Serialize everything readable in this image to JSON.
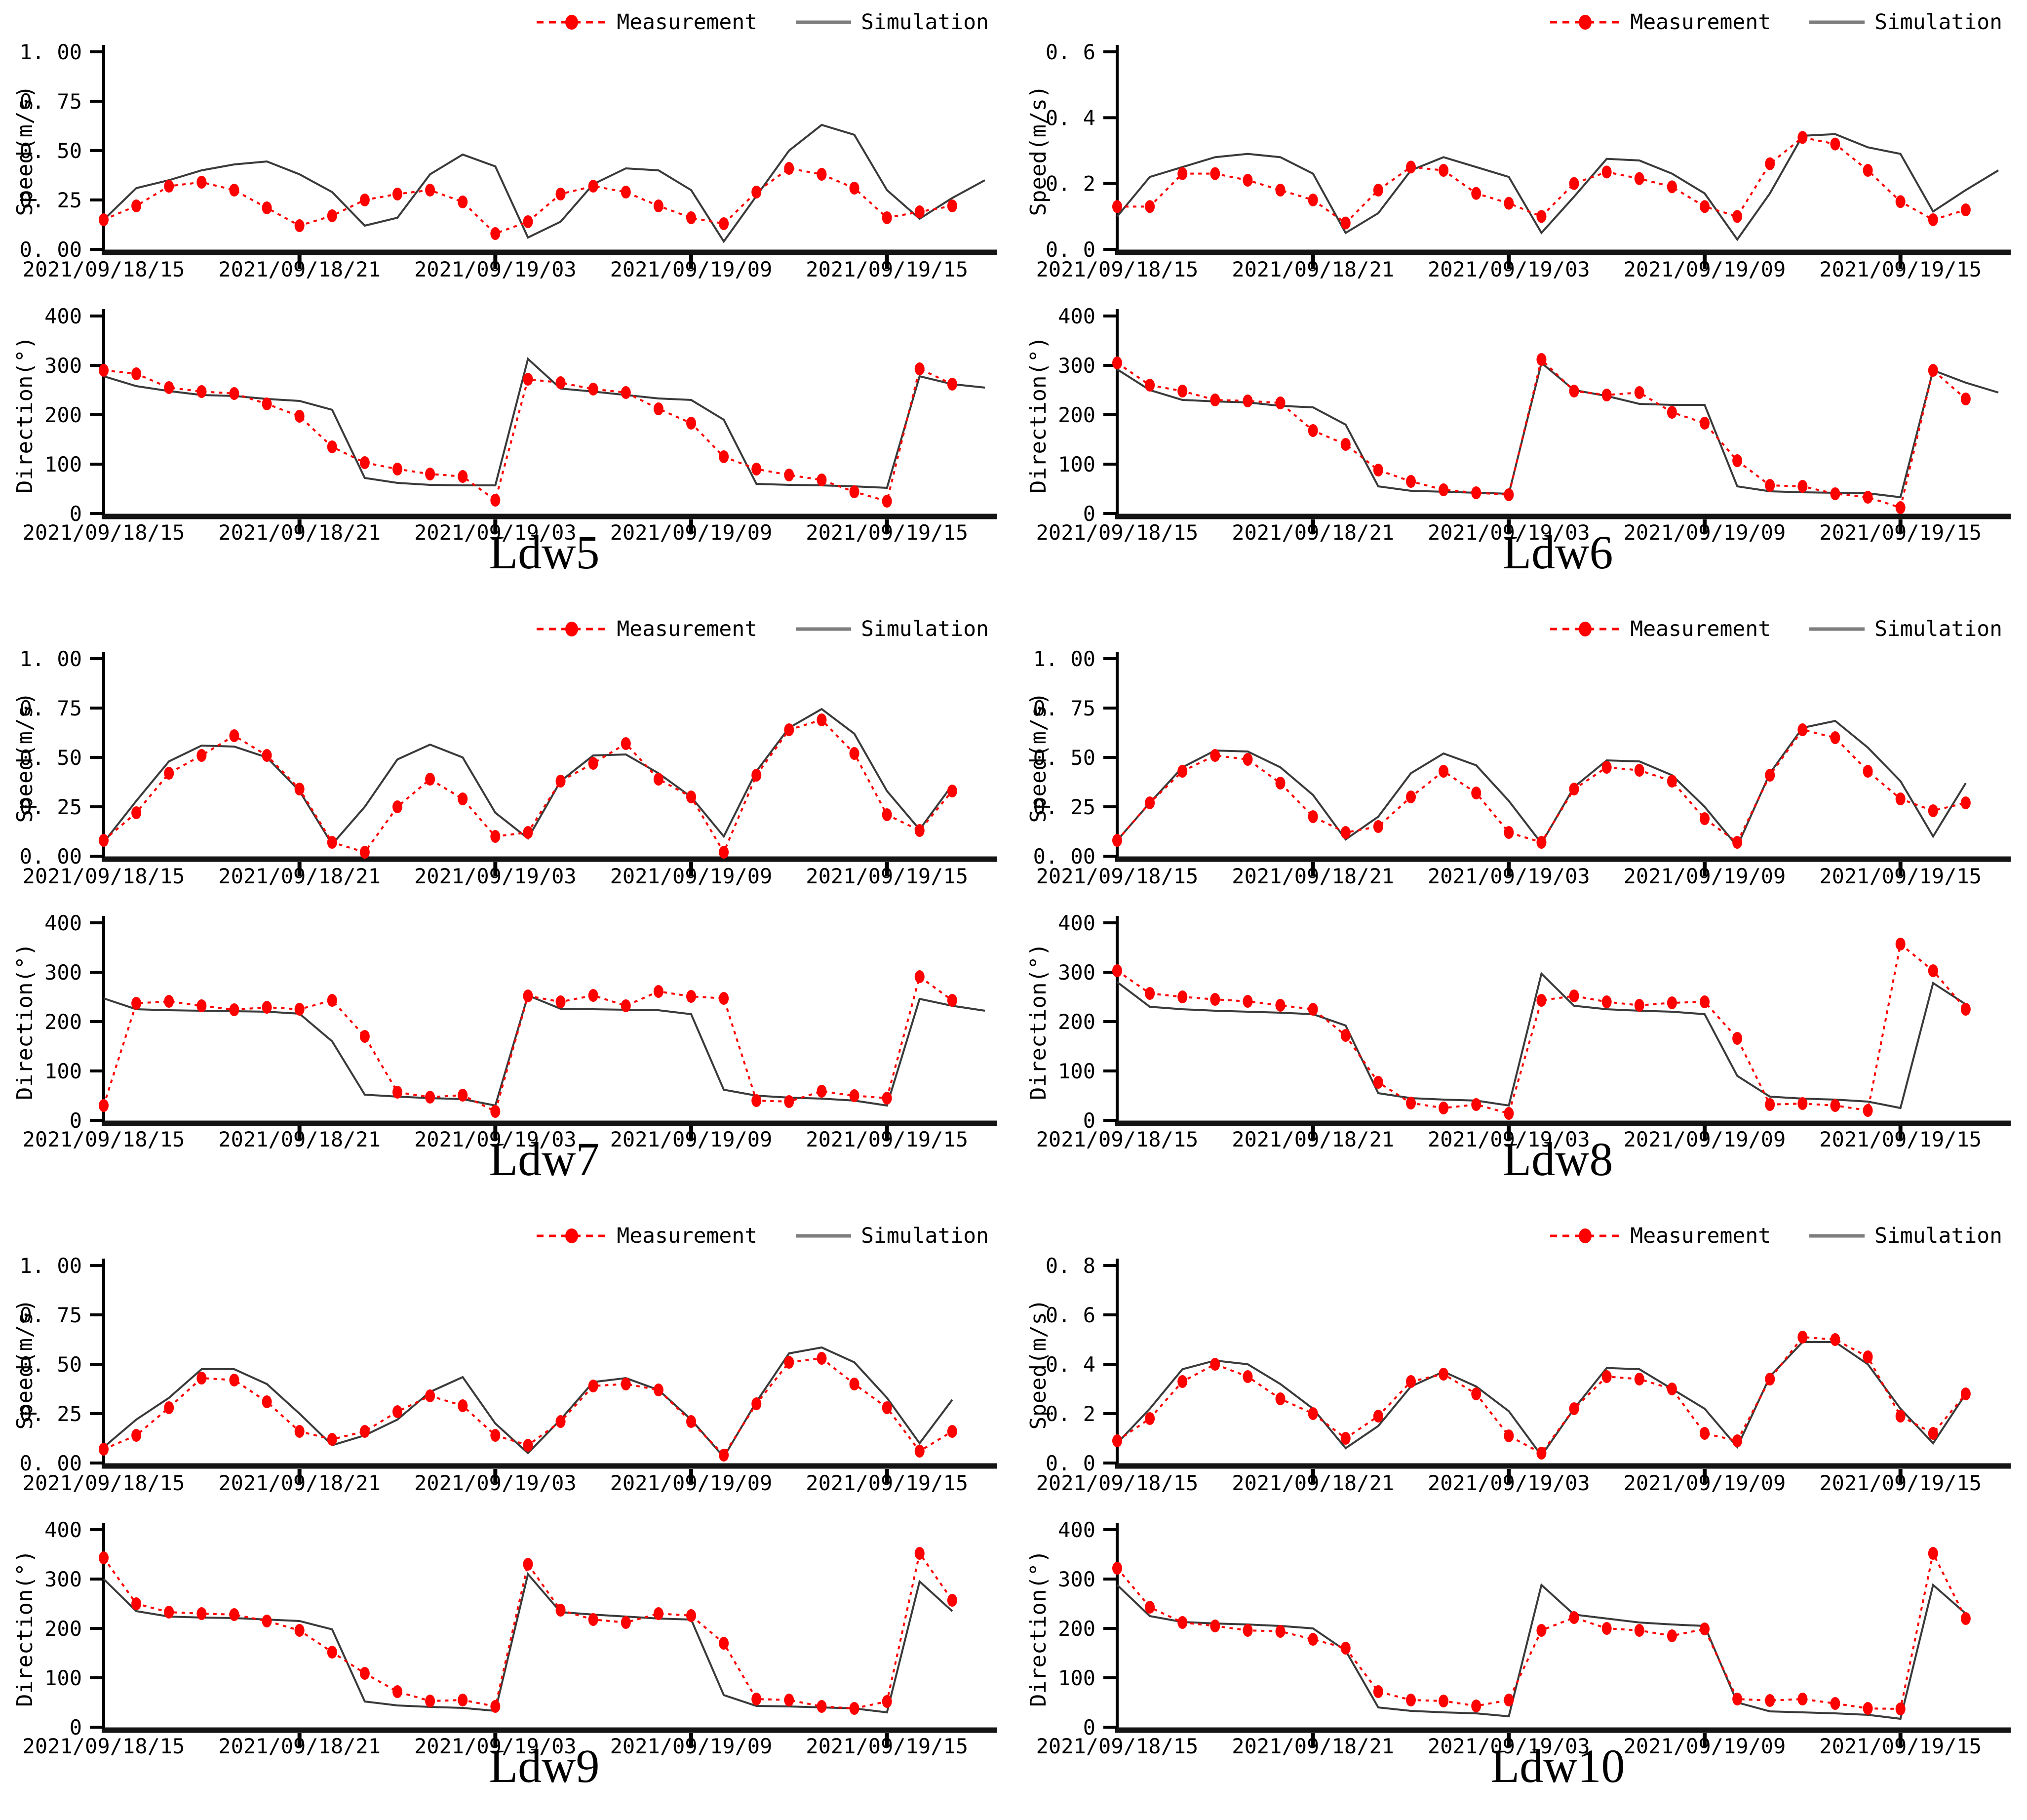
{
  "legend": {
    "measurement": "Measurement",
    "simulation": "Simulation"
  },
  "colors": {
    "measurement": "#ff0000",
    "simulation": "#3a3a3a",
    "simulation_legend": "#7d7d7d",
    "axis": "#000000"
  },
  "x_axis": {
    "tick_labels": [
      "2021/09/18/15",
      "2021/09/18/21",
      "2021/09/19/03",
      "2021/09/19/09",
      "2021/09/19/15"
    ],
    "tick_hours": [
      0,
      6,
      12,
      18,
      24
    ],
    "hours_span": 27
  },
  "chart_data": [
    {
      "station": "Ldw5",
      "charts": {
        "speed": {
          "type": "line",
          "ylabel": "Speed(m/s)",
          "ylim": [
            0,
            1.0
          ],
          "yticks": [
            "0. 00",
            "0. 25",
            "0. 50",
            "0. 75",
            "1. 00"
          ],
          "measurement": [
            0.15,
            0.22,
            0.32,
            0.34,
            0.3,
            0.21,
            0.12,
            0.17,
            0.25,
            0.28,
            0.3,
            0.24,
            0.08,
            0.14,
            0.28,
            0.32,
            0.29,
            0.22,
            0.16,
            0.13,
            0.29,
            0.41,
            0.38,
            0.31,
            0.16,
            0.19,
            0.22
          ],
          "simulation": [
            0.15,
            0.31,
            0.35,
            0.4,
            0.43,
            0.445,
            0.38,
            0.29,
            0.12,
            0.16,
            0.38,
            0.48,
            0.42,
            0.06,
            0.14,
            0.33,
            0.41,
            0.4,
            0.3,
            0.04,
            0.27,
            0.5,
            0.63,
            0.58,
            0.3,
            0.155,
            0.26,
            0.35
          ]
        },
        "direction": {
          "type": "line",
          "ylabel": "Direction(°)",
          "ylim": [
            0,
            400
          ],
          "yticks": [
            "0",
            "100",
            "200",
            "300",
            "400"
          ],
          "measurement": [
            290,
            283,
            255,
            247,
            243,
            222,
            197,
            135,
            103,
            90,
            80,
            75,
            27,
            272,
            265,
            252,
            245,
            212,
            183,
            115,
            90,
            78,
            68,
            44,
            25,
            293,
            262
          ],
          "simulation": [
            278,
            258,
            248,
            240,
            238,
            232,
            228,
            210,
            72,
            62,
            58,
            57,
            57,
            313,
            253,
            247,
            240,
            233,
            230,
            190,
            60,
            58,
            57,
            55,
            52,
            278,
            262,
            255
          ]
        }
      }
    },
    {
      "station": "Ldw6",
      "charts": {
        "speed": {
          "type": "line",
          "ylabel": "Speed(m/s)",
          "ylim": [
            0,
            0.6
          ],
          "yticks": [
            "0. 0",
            "0. 2",
            "0. 4",
            "0. 6"
          ],
          "measurement": [
            0.13,
            0.13,
            0.23,
            0.23,
            0.21,
            0.18,
            0.15,
            0.08,
            0.18,
            0.25,
            0.24,
            0.17,
            0.14,
            0.1,
            0.2,
            0.235,
            0.215,
            0.19,
            0.13,
            0.1,
            0.26,
            0.34,
            0.32,
            0.24,
            0.145,
            0.09,
            0.12
          ],
          "simulation": [
            0.1,
            0.22,
            0.25,
            0.28,
            0.29,
            0.28,
            0.23,
            0.05,
            0.11,
            0.24,
            0.28,
            0.25,
            0.22,
            0.05,
            0.16,
            0.275,
            0.27,
            0.23,
            0.17,
            0.03,
            0.17,
            0.345,
            0.35,
            0.31,
            0.29,
            0.115,
            0.18,
            0.24
          ]
        },
        "direction": {
          "type": "line",
          "ylabel": "Direction(°)",
          "ylim": [
            0,
            400
          ],
          "yticks": [
            "0",
            "100",
            "200",
            "300",
            "400"
          ],
          "measurement": [
            305,
            260,
            248,
            230,
            228,
            224,
            168,
            140,
            88,
            65,
            48,
            42,
            38,
            312,
            248,
            240,
            245,
            205,
            183,
            107,
            57,
            55,
            40,
            33,
            12,
            290,
            232
          ],
          "simulation": [
            292,
            250,
            230,
            227,
            225,
            218,
            215,
            180,
            55,
            46,
            44,
            42,
            40,
            305,
            250,
            238,
            222,
            220,
            220,
            55,
            45,
            43,
            42,
            41,
            33,
            290,
            265,
            245
          ]
        }
      }
    },
    {
      "station": "Ldw7",
      "charts": {
        "speed": {
          "type": "line",
          "ylabel": "Speed(m/s)",
          "ylim": [
            0,
            1.0
          ],
          "yticks": [
            "0. 00",
            "0. 25",
            "0. 50",
            "0. 75",
            "1. 00"
          ],
          "measurement": [
            0.08,
            0.22,
            0.42,
            0.51,
            0.61,
            0.51,
            0.34,
            0.07,
            0.02,
            0.25,
            0.39,
            0.29,
            0.1,
            0.12,
            0.38,
            0.47,
            0.57,
            0.39,
            0.3,
            0.02,
            0.41,
            0.64,
            0.69,
            0.52,
            0.21,
            0.13,
            0.33
          ],
          "simulation": [
            0.07,
            0.28,
            0.48,
            0.56,
            0.555,
            0.5,
            0.33,
            0.06,
            0.25,
            0.49,
            0.565,
            0.5,
            0.22,
            0.09,
            0.38,
            0.51,
            0.515,
            0.42,
            0.3,
            0.1,
            0.43,
            0.65,
            0.745,
            0.62,
            0.33,
            0.135,
            0.36
          ]
        },
        "direction": {
          "type": "line",
          "ylabel": "Direction(°)",
          "ylim": [
            0,
            400
          ],
          "yticks": [
            "0",
            "100",
            "200",
            "300",
            "400"
          ],
          "measurement": [
            30,
            237,
            241,
            232,
            224,
            229,
            225,
            243,
            170,
            57,
            47,
            51,
            18,
            252,
            240,
            253,
            232,
            261,
            251,
            247,
            40,
            38,
            59,
            50,
            45,
            291,
            243
          ],
          "simulation": [
            247,
            225,
            223,
            222,
            221,
            220,
            216,
            160,
            52,
            48,
            45,
            43,
            30,
            253,
            226,
            225,
            224,
            223,
            215,
            62,
            50,
            46,
            44,
            40,
            30,
            246,
            232,
            222
          ]
        }
      }
    },
    {
      "station": "Ldw8",
      "charts": {
        "speed": {
          "type": "line",
          "ylabel": "Speed(m/s)",
          "ylim": [
            0,
            1.0
          ],
          "yticks": [
            "0. 00",
            "0. 25",
            "0. 50",
            "0. 75",
            "1. 00"
          ],
          "measurement": [
            0.08,
            0.27,
            0.43,
            0.51,
            0.49,
            0.37,
            0.2,
            0.12,
            0.15,
            0.3,
            0.43,
            0.32,
            0.12,
            0.07,
            0.34,
            0.45,
            0.435,
            0.38,
            0.19,
            0.07,
            0.41,
            0.64,
            0.6,
            0.43,
            0.29,
            0.23,
            0.27
          ],
          "simulation": [
            0.08,
            0.27,
            0.45,
            0.535,
            0.53,
            0.45,
            0.31,
            0.085,
            0.2,
            0.42,
            0.52,
            0.46,
            0.28,
            0.065,
            0.35,
            0.485,
            0.48,
            0.41,
            0.25,
            0.05,
            0.42,
            0.65,
            0.685,
            0.55,
            0.38,
            0.1,
            0.37
          ]
        },
        "direction": {
          "type": "line",
          "ylabel": "Direction(°)",
          "ylim": [
            0,
            400
          ],
          "yticks": [
            "0",
            "100",
            "200",
            "300",
            "400"
          ],
          "measurement": [
            303,
            257,
            250,
            245,
            241,
            233,
            225,
            172,
            77,
            35,
            25,
            32,
            14,
            243,
            252,
            240,
            233,
            238,
            240,
            166,
            32,
            34,
            30,
            20,
            357,
            303,
            225
          ],
          "simulation": [
            280,
            230,
            225,
            222,
            220,
            218,
            215,
            192,
            55,
            45,
            42,
            40,
            30,
            297,
            232,
            225,
            222,
            220,
            215,
            90,
            48,
            44,
            42,
            38,
            25,
            278,
            235
          ]
        }
      }
    },
    {
      "station": "Ldw9",
      "charts": {
        "speed": {
          "type": "line",
          "ylabel": "Speed(m/s)",
          "ylim": [
            0,
            1.0
          ],
          "yticks": [
            "0. 00",
            "0. 25",
            "0. 50",
            "0. 75",
            "1. 00"
          ],
          "measurement": [
            0.07,
            0.14,
            0.28,
            0.43,
            0.42,
            0.31,
            0.16,
            0.12,
            0.16,
            0.26,
            0.34,
            0.29,
            0.14,
            0.09,
            0.21,
            0.39,
            0.4,
            0.37,
            0.21,
            0.04,
            0.3,
            0.51,
            0.53,
            0.4,
            0.28,
            0.06,
            0.16
          ],
          "simulation": [
            0.08,
            0.22,
            0.33,
            0.475,
            0.475,
            0.4,
            0.25,
            0.09,
            0.14,
            0.22,
            0.36,
            0.435,
            0.2,
            0.05,
            0.22,
            0.41,
            0.43,
            0.37,
            0.22,
            0.03,
            0.31,
            0.555,
            0.585,
            0.51,
            0.33,
            0.1,
            0.32
          ]
        },
        "direction": {
          "type": "line",
          "ylabel": "Direction(°)",
          "ylim": [
            0,
            400
          ],
          "yticks": [
            "0",
            "100",
            "200",
            "300",
            "400"
          ],
          "measurement": [
            343,
            250,
            233,
            230,
            228,
            215,
            196,
            152,
            109,
            72,
            53,
            55,
            42,
            330,
            237,
            218,
            212,
            230,
            226,
            170,
            57,
            55,
            42,
            38,
            52,
            352,
            257
          ],
          "simulation": [
            300,
            235,
            224,
            222,
            221,
            218,
            215,
            198,
            52,
            44,
            41,
            39,
            33,
            310,
            233,
            228,
            224,
            220,
            218,
            65,
            43,
            42,
            40,
            38,
            30,
            295,
            235
          ]
        }
      }
    },
    {
      "station": "Ldw10",
      "charts": {
        "speed": {
          "type": "line",
          "ylabel": "Speed(m/s)",
          "ylim": [
            0,
            0.8
          ],
          "yticks": [
            "0. 0",
            "0. 2",
            "0. 4",
            "0. 6",
            "0. 8"
          ],
          "measurement": [
            0.09,
            0.18,
            0.33,
            0.4,
            0.35,
            0.26,
            0.2,
            0.1,
            0.19,
            0.33,
            0.36,
            0.28,
            0.11,
            0.04,
            0.22,
            0.35,
            0.34,
            0.3,
            0.12,
            0.09,
            0.34,
            0.51,
            0.5,
            0.43,
            0.19,
            0.12,
            0.28
          ],
          "simulation": [
            0.08,
            0.22,
            0.38,
            0.415,
            0.4,
            0.32,
            0.22,
            0.06,
            0.15,
            0.31,
            0.37,
            0.31,
            0.21,
            0.03,
            0.22,
            0.385,
            0.38,
            0.3,
            0.22,
            0.065,
            0.35,
            0.49,
            0.49,
            0.4,
            0.22,
            0.08,
            0.28
          ]
        },
        "direction": {
          "type": "line",
          "ylabel": "Direction(°)",
          "ylim": [
            0,
            400
          ],
          "yticks": [
            "0",
            "100",
            "200",
            "300",
            "400"
          ],
          "measurement": [
            322,
            243,
            212,
            205,
            196,
            194,
            178,
            160,
            72,
            55,
            53,
            43,
            55,
            196,
            222,
            200,
            196,
            185,
            199,
            57,
            54,
            57,
            48,
            38,
            37,
            352,
            220
          ],
          "simulation": [
            288,
            225,
            213,
            210,
            208,
            205,
            200,
            155,
            40,
            33,
            30,
            28,
            22,
            288,
            228,
            220,
            212,
            208,
            205,
            50,
            32,
            30,
            28,
            25,
            17,
            288,
            230
          ]
        }
      }
    }
  ]
}
